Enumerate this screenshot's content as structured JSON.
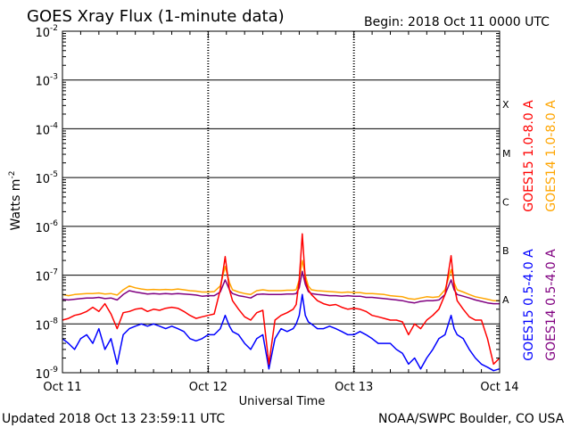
{
  "header": {
    "title": "GOES Xray Flux (1-minute data)",
    "begin": "Begin:  2018 Oct 11 0000 UTC"
  },
  "footer": {
    "updated": "Updated 2018 Oct 13 23:59:11 UTC",
    "source": "NOAA/SWPC Boulder, CO USA"
  },
  "chart_data": {
    "type": "line",
    "xlabel": "Universal Time",
    "ylabel": "Watts m",
    "ylabel_superscript": "-2",
    "yscale": "log",
    "ylim": [
      1e-09,
      0.01
    ],
    "xlim": [
      0,
      72
    ],
    "x_unit": "hours since 2018 Oct 11 0000 UTC",
    "grid": true,
    "x_ticks": [
      {
        "hours": 0,
        "label": "Oct 11"
      },
      {
        "hours": 24,
        "label": "Oct 12"
      },
      {
        "hours": 48,
        "label": "Oct 13"
      },
      {
        "hours": 72,
        "label": "Oct 14"
      }
    ],
    "y_ticks": [
      {
        "exp": -2,
        "label": "10",
        "sup": "-2"
      },
      {
        "exp": -3,
        "label": "10",
        "sup": "-3"
      },
      {
        "exp": -4,
        "label": "10",
        "sup": "-4"
      },
      {
        "exp": -5,
        "label": "10",
        "sup": "-5"
      },
      {
        "exp": -6,
        "label": "10",
        "sup": "-6"
      },
      {
        "exp": -7,
        "label": "10",
        "sup": "-7"
      },
      {
        "exp": -8,
        "label": "10",
        "sup": "-8"
      },
      {
        "exp": -9,
        "label": "10",
        "sup": "-9"
      }
    ],
    "flare_classes": [
      {
        "label": "X",
        "exp": -3.5
      },
      {
        "label": "M",
        "exp": -4.5
      },
      {
        "label": "C",
        "exp": -5.5
      },
      {
        "label": "B",
        "exp": -6.5
      },
      {
        "label": "A",
        "exp": -7.5
      }
    ],
    "legend_position": "right",
    "series": [
      {
        "name": "GOES15 1.0-8.0 A",
        "color": "#ff0000",
        "x": [
          0,
          1,
          2,
          3,
          4,
          5,
          6,
          7,
          8,
          9,
          10,
          11,
          12,
          13,
          14,
          15,
          16,
          17,
          18,
          19,
          20,
          21,
          22,
          23,
          24,
          25,
          26,
          26.8,
          27.5,
          28,
          29,
          30,
          31,
          32,
          33,
          34,
          35,
          36,
          37,
          38,
          38.5,
          39,
          39.5,
          40,
          40.5,
          41,
          42,
          43,
          44,
          45,
          46,
          47,
          48,
          49,
          50,
          51,
          52,
          53,
          54,
          55,
          56,
          57,
          58,
          59,
          60,
          61,
          62,
          63,
          64,
          64.5,
          65,
          66,
          67,
          68,
          69,
          70,
          71,
          72
        ],
        "values": [
          1.2e-08,
          1.3e-08,
          1.5e-08,
          1.6e-08,
          1.8e-08,
          2.2e-08,
          1.8e-08,
          2.6e-08,
          1.6e-08,
          8e-09,
          1.7e-08,
          1.8e-08,
          2e-08,
          2.1e-08,
          1.8e-08,
          2e-08,
          1.9e-08,
          2.1e-08,
          2.2e-08,
          2.1e-08,
          1.8e-08,
          1.5e-08,
          1.3e-08,
          1.4e-08,
          1.5e-08,
          1.6e-08,
          5e-08,
          2.4e-07,
          5e-08,
          3e-08,
          2e-08,
          1.4e-08,
          1.2e-08,
          1.7e-08,
          1.9e-08,
          1.5e-09,
          1.2e-08,
          1.5e-08,
          1.7e-08,
          2e-08,
          2.5e-08,
          8e-08,
          7e-07,
          8e-08,
          5e-08,
          4e-08,
          3e-08,
          2.6e-08,
          2.4e-08,
          2.5e-08,
          2.2e-08,
          2e-08,
          2.1e-08,
          2e-08,
          1.8e-08,
          1.5e-08,
          1.4e-08,
          1.3e-08,
          1.2e-08,
          1.2e-08,
          1.1e-08,
          6e-09,
          1e-08,
          8e-09,
          1.2e-08,
          1.5e-08,
          2e-08,
          4e-08,
          2.5e-07,
          6e-08,
          3e-08,
          2e-08,
          1.4e-08,
          1.2e-08,
          1.2e-08,
          5e-09,
          1.5e-09,
          2e-09
        ]
      },
      {
        "name": "GOES14 1.0-8.0 A",
        "color": "#ffa500",
        "x": [
          0,
          1,
          2,
          3,
          4,
          5,
          6,
          7,
          8,
          9,
          10,
          11,
          12,
          13,
          14,
          15,
          16,
          17,
          18,
          19,
          20,
          21,
          22,
          23,
          24,
          25,
          26,
          26.8,
          27.5,
          28,
          29,
          30,
          31,
          32,
          33,
          34,
          35,
          36,
          37,
          38,
          38.5,
          39,
          39.5,
          40,
          40.5,
          41,
          42,
          43,
          44,
          45,
          46,
          47,
          48,
          49,
          50,
          51,
          52,
          53,
          54,
          55,
          56,
          57,
          58,
          59,
          60,
          61,
          62,
          63,
          64,
          64.5,
          65,
          66,
          67,
          68,
          69,
          70,
          71,
          72
        ],
        "values": [
          4e-08,
          3.8e-08,
          4e-08,
          4.1e-08,
          4.2e-08,
          4.2e-08,
          4.3e-08,
          4.1e-08,
          4.2e-08,
          3.9e-08,
          5e-08,
          6e-08,
          5.5e-08,
          5.2e-08,
          5e-08,
          5.1e-08,
          5e-08,
          5.1e-08,
          5e-08,
          5.2e-08,
          5e-08,
          4.8e-08,
          4.7e-08,
          4.5e-08,
          4.5e-08,
          4.6e-08,
          6e-08,
          1.5e-07,
          7e-08,
          5e-08,
          4.5e-08,
          4.2e-08,
          4e-08,
          4.8e-08,
          5e-08,
          4.8e-08,
          4.8e-08,
          4.8e-08,
          4.9e-08,
          4.9e-08,
          5e-08,
          8e-08,
          2e-07,
          1e-07,
          6e-08,
          5e-08,
          4.8e-08,
          4.7e-08,
          4.6e-08,
          4.5e-08,
          4.4e-08,
          4.5e-08,
          4.4e-08,
          4.4e-08,
          4.2e-08,
          4.2e-08,
          4.1e-08,
          4e-08,
          3.8e-08,
          3.7e-08,
          3.6e-08,
          3.3e-08,
          3.2e-08,
          3.4e-08,
          3.6e-08,
          3.5e-08,
          3.6e-08,
          5e-08,
          1.3e-07,
          7e-08,
          5e-08,
          4.5e-08,
          4e-08,
          3.6e-08,
          3.4e-08,
          3.2e-08,
          3e-08,
          3e-08
        ]
      },
      {
        "name": "GOES15 0.5-4.0 A",
        "color": "#0000ff",
        "x": [
          0,
          1,
          2,
          3,
          4,
          5,
          6,
          7,
          8,
          9,
          10,
          11,
          12,
          13,
          14,
          15,
          16,
          17,
          18,
          19,
          20,
          21,
          22,
          23,
          24,
          25,
          26,
          26.8,
          27.5,
          28,
          29,
          30,
          31,
          32,
          33,
          34,
          35,
          36,
          37,
          38,
          38.5,
          39,
          39.5,
          40,
          40.5,
          41,
          42,
          43,
          44,
          45,
          46,
          47,
          48,
          49,
          50,
          51,
          52,
          53,
          54,
          55,
          56,
          57,
          58,
          59,
          60,
          61,
          62,
          63,
          64,
          64.5,
          65,
          66,
          67,
          68,
          69,
          70,
          71,
          72
        ],
        "values": [
          5e-09,
          4e-09,
          3e-09,
          5e-09,
          6e-09,
          4e-09,
          8e-09,
          3e-09,
          5e-09,
          1.5e-09,
          6e-09,
          8e-09,
          9e-09,
          1e-08,
          9e-09,
          1e-08,
          9e-09,
          8e-09,
          9e-09,
          8e-09,
          7e-09,
          5e-09,
          4.5e-09,
          5e-09,
          6e-09,
          6e-09,
          8e-09,
          1.5e-08,
          9e-09,
          7e-09,
          6e-09,
          4e-09,
          3e-09,
          5e-09,
          6e-09,
          1.2e-09,
          5e-09,
          8e-09,
          7e-09,
          8e-09,
          1e-08,
          1.5e-08,
          4e-08,
          1.5e-08,
          1.1e-08,
          1e-08,
          8e-09,
          8e-09,
          9e-09,
          8e-09,
          7e-09,
          6e-09,
          6e-09,
          7e-09,
          6e-09,
          5e-09,
          4e-09,
          4e-09,
          4e-09,
          3e-09,
          2.5e-09,
          1.5e-09,
          2e-09,
          1.2e-09,
          2e-09,
          3e-09,
          5e-09,
          6e-09,
          1.5e-08,
          8e-09,
          6e-09,
          5e-09,
          3e-09,
          2e-09,
          1.5e-09,
          1.3e-09,
          1.1e-09,
          1.2e-09
        ]
      },
      {
        "name": "GOES14 0.5-4.0 A",
        "color": "#800080",
        "x": [
          0,
          1,
          2,
          3,
          4,
          5,
          6,
          7,
          8,
          9,
          10,
          11,
          12,
          13,
          14,
          15,
          16,
          17,
          18,
          19,
          20,
          21,
          22,
          23,
          24,
          25,
          26,
          26.8,
          27.5,
          28,
          29,
          30,
          31,
          32,
          33,
          34,
          35,
          36,
          37,
          38,
          38.5,
          39,
          39.5,
          40,
          40.5,
          41,
          42,
          43,
          44,
          45,
          46,
          47,
          48,
          49,
          50,
          51,
          52,
          53,
          54,
          55,
          56,
          57,
          58,
          59,
          60,
          61,
          62,
          63,
          64,
          64.5,
          65,
          66,
          67,
          68,
          69,
          70,
          71,
          72
        ],
        "values": [
          3.2e-08,
          3.1e-08,
          3.2e-08,
          3.3e-08,
          3.4e-08,
          3.4e-08,
          3.5e-08,
          3.3e-08,
          3.4e-08,
          3.1e-08,
          4e-08,
          4.8e-08,
          4.5e-08,
          4.3e-08,
          4.1e-08,
          4.2e-08,
          4.1e-08,
          4.2e-08,
          4.1e-08,
          4.2e-08,
          4.1e-08,
          4e-08,
          3.9e-08,
          3.7e-08,
          3.8e-08,
          3.8e-08,
          4.5e-08,
          8e-08,
          5e-08,
          4.2e-08,
          3.8e-08,
          3.6e-08,
          3.4e-08,
          4e-08,
          4.1e-08,
          4e-08,
          4e-08,
          4e-08,
          4.1e-08,
          4.1e-08,
          4.2e-08,
          5.5e-08,
          1.2e-07,
          6.5e-08,
          4.6e-08,
          4.2e-08,
          4e-08,
          3.9e-08,
          3.8e-08,
          3.8e-08,
          3.7e-08,
          3.8e-08,
          3.7e-08,
          3.7e-08,
          3.5e-08,
          3.5e-08,
          3.4e-08,
          3.3e-08,
          3.2e-08,
          3.1e-08,
          3e-08,
          2.8e-08,
          2.7e-08,
          2.9e-08,
          3e-08,
          3e-08,
          3.1e-08,
          4e-08,
          8e-08,
          5e-08,
          4e-08,
          3.7e-08,
          3.4e-08,
          3.1e-08,
          2.9e-08,
          2.7e-08,
          2.6e-08,
          2.6e-08
        ]
      }
    ]
  }
}
